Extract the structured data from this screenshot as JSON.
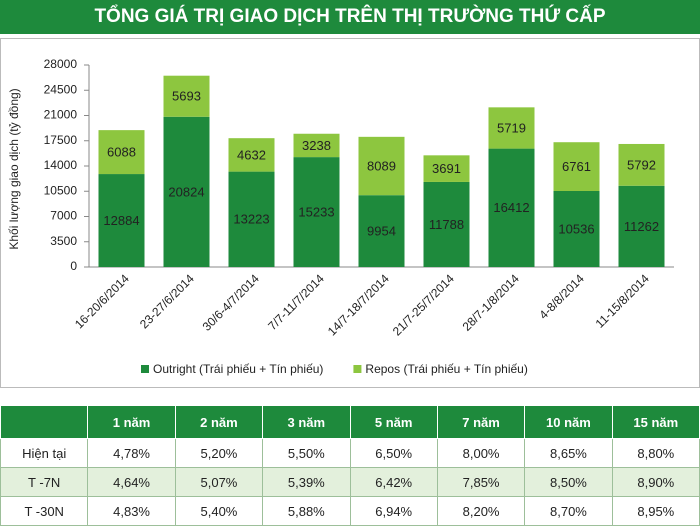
{
  "chart_data": {
    "type": "bar",
    "stacked": true,
    "title": "TỔNG GIÁ TRỊ GIAO DỊCH TRÊN THỊ TRƯỜNG THỨ CẤP",
    "y_label": "Khối lượng giao dịch (tỷ đồng)",
    "categories": [
      "16-20/6/2014",
      "23-27/6/2014",
      "30/6-4/7/2014",
      "7/7-11/7/2014",
      "14/7-18/7/2014",
      "21/7-25/7/2014",
      "28/7-1/8/2014",
      "4-8/8/2014",
      "11-15/8/2014"
    ],
    "series": [
      {
        "name": "Outright (Trái phiếu + Tín phiếu)",
        "color": "#1e8a3c",
        "values": [
          12884,
          20824,
          13223,
          15233,
          9954,
          11788,
          16412,
          10536,
          11262
        ]
      },
      {
        "name": "Repos (Trái phiếu + Tín phiếu)",
        "color": "#8dc63f",
        "values": [
          6088,
          5693,
          4632,
          3238,
          8089,
          3691,
          5719,
          6761,
          5792
        ]
      }
    ],
    "ylim": [
      0,
      28000
    ],
    "yticks": [
      0,
      3500,
      7000,
      10500,
      14000,
      17500,
      21000,
      24500,
      28000
    ],
    "grid": false,
    "legend": "bottom"
  },
  "table": {
    "columns": [
      "1 năm",
      "2 năm",
      "3 năm",
      "5 năm",
      "7 năm",
      "10 năm",
      "15 năm"
    ],
    "rows": [
      [
        "Hiện tại",
        "4,78%",
        "5,20%",
        "5,50%",
        "6,50%",
        "8,00%",
        "8,65%",
        "8,80%"
      ],
      [
        "T -7N",
        "4,64%",
        "5,07%",
        "5,39%",
        "6,42%",
        "7,85%",
        "8,50%",
        "8,90%"
      ],
      [
        "T -30N",
        "4,83%",
        "5,40%",
        "5,88%",
        "6,94%",
        "8,20%",
        "8,70%",
        "8,95%"
      ]
    ]
  }
}
